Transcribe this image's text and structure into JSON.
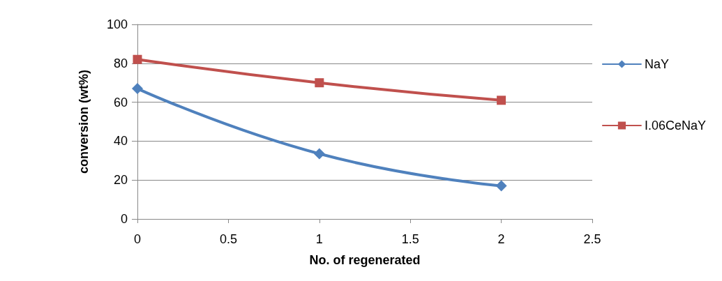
{
  "chart_data": {
    "type": "line",
    "xlabel": "No. of regenerated",
    "ylabel": "conversion (wt%)",
    "xlim": [
      0,
      2.5
    ],
    "xticks": [
      0,
      0.5,
      1,
      1.5,
      2,
      2.5
    ],
    "ylim": [
      0,
      100
    ],
    "yticks": [
      0,
      20,
      40,
      60,
      80,
      100
    ],
    "grid": "y",
    "legend": "right",
    "line_style": "solid",
    "series": [
      {
        "name": "NaY",
        "color": "#4f81bd",
        "marker": "diamond",
        "x": [
          0,
          1,
          2
        ],
        "values": [
          67,
          33.5,
          17
        ]
      },
      {
        "name": "I.06CeNaY",
        "color": "#c0504d",
        "marker": "square",
        "x": [
          0,
          1,
          2
        ],
        "values": [
          82,
          70,
          61
        ]
      }
    ]
  }
}
